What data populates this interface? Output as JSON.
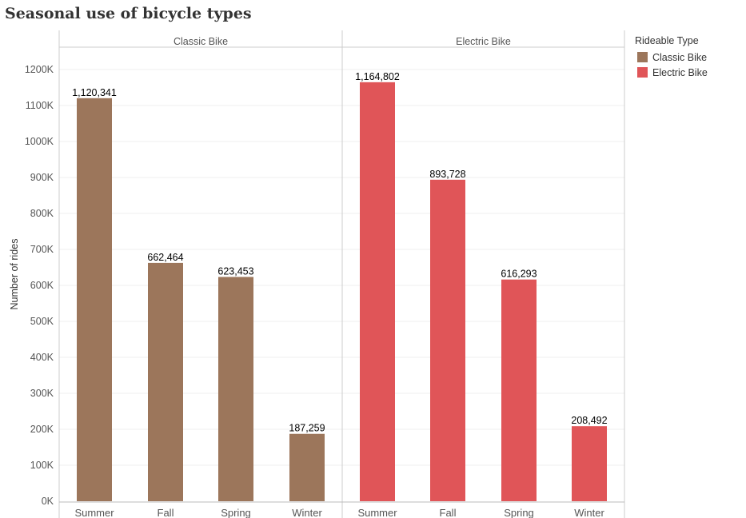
{
  "title": "Seasonal use of bicycle types",
  "chart_data": {
    "type": "bar",
    "title": "Seasonal use of bicycle types",
    "ylabel": "Number of rides",
    "xlabel": "",
    "ylim": [
      0,
      1250000
    ],
    "yticks": [
      0,
      100000,
      200000,
      300000,
      400000,
      500000,
      600000,
      700000,
      800000,
      900000,
      1000000,
      1100000,
      1200000
    ],
    "ytick_labels": [
      "0K",
      "100K",
      "200K",
      "300K",
      "400K",
      "500K",
      "600K",
      "700K",
      "800K",
      "900K",
      "1000K",
      "1100K",
      "1200K"
    ],
    "categories": [
      "Summer",
      "Fall",
      "Spring",
      "Winter"
    ],
    "series": [
      {
        "name": "Classic Bike",
        "color": "#9c765b",
        "values": [
          1120341,
          662464,
          623453,
          187259
        ],
        "labels": [
          "1,120,341",
          "662,464",
          "623,453",
          "187,259"
        ]
      },
      {
        "name": "Electric Bike",
        "color": "#e05558",
        "values": [
          1164802,
          893728,
          616293,
          208492
        ],
        "labels": [
          "1,164,802",
          "893,728",
          "616,293",
          "208,492"
        ]
      }
    ],
    "legend": {
      "title": "Rideable Type",
      "position": "right"
    },
    "grid": true
  }
}
